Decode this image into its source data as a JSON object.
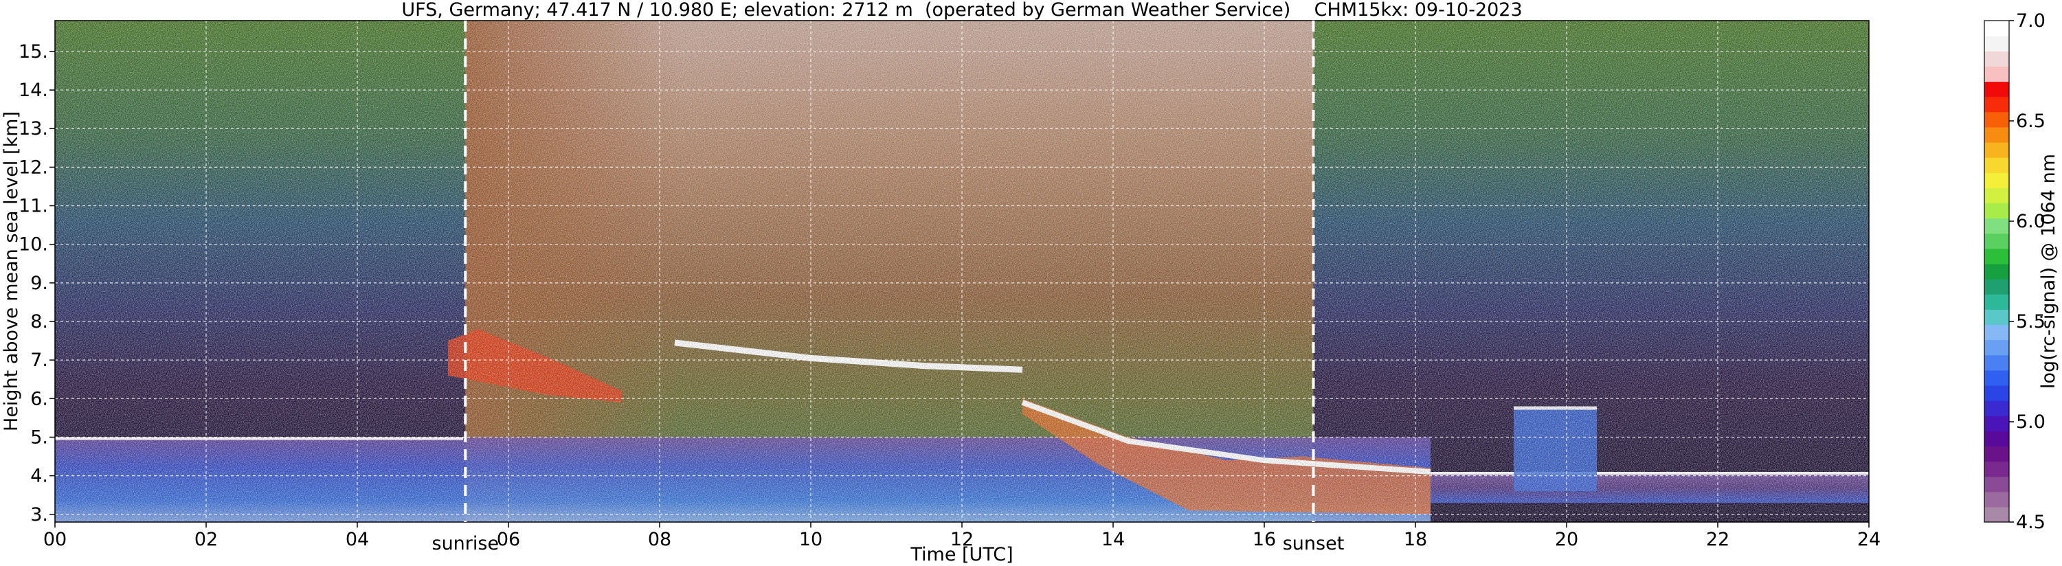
{
  "chart_data": {
    "type": "heatmap",
    "title": "UFS, Germany; 47.417 N / 10.980 E; elevation: 2712 m  (operated by German Weather Service)    CHM15kx: 09-10-2023",
    "xlabel": "Time [UTC]",
    "ylabel": "Height above mean sea level [km]",
    "xlim": [
      0,
      24
    ],
    "ylim": [
      2.8,
      15.8
    ],
    "x_ticks": [
      {
        "value": 0,
        "label": "00"
      },
      {
        "value": 2,
        "label": "02"
      },
      {
        "value": 4,
        "label": "04"
      },
      {
        "value": 6,
        "label": "06"
      },
      {
        "value": 8,
        "label": "08"
      },
      {
        "value": 10,
        "label": "10"
      },
      {
        "value": 12,
        "label": "12"
      },
      {
        "value": 14,
        "label": "14"
      },
      {
        "value": 16,
        "label": "16"
      },
      {
        "value": 18,
        "label": "18"
      },
      {
        "value": 20,
        "label": "20"
      },
      {
        "value": 22,
        "label": "22"
      },
      {
        "value": 24,
        "label": "24"
      }
    ],
    "y_ticks": [
      {
        "value": 3,
        "label": "3."
      },
      {
        "value": 4,
        "label": "4."
      },
      {
        "value": 5,
        "label": "5."
      },
      {
        "value": 6,
        "label": "6."
      },
      {
        "value": 7,
        "label": "7."
      },
      {
        "value": 8,
        "label": "8."
      },
      {
        "value": 9,
        "label": "9."
      },
      {
        "value": 10,
        "label": "10."
      },
      {
        "value": 11,
        "label": "11."
      },
      {
        "value": 12,
        "label": "12."
      },
      {
        "value": 13,
        "label": "13."
      },
      {
        "value": 14,
        "label": "14."
      },
      {
        "value": 15,
        "label": "15."
      }
    ],
    "grid": true,
    "annotations": [
      {
        "text": "sunrise",
        "x": 5.43
      },
      {
        "text": "sunset",
        "x": 16.65
      }
    ],
    "colorbar": {
      "label": "log(rc-signal) @ 1064 nm",
      "range": [
        4.5,
        7.0
      ],
      "ticks": [
        {
          "value": 4.5,
          "label": "4.5"
        },
        {
          "value": 5.0,
          "label": "5.0"
        },
        {
          "value": 5.5,
          "label": "5.5"
        },
        {
          "value": 6.0,
          "label": "6.0"
        },
        {
          "value": 6.5,
          "label": "6.5"
        },
        {
          "value": 7.0,
          "label": "7.0"
        }
      ],
      "colors": [
        "#a88aa8",
        "#9b6a9e",
        "#8a4a96",
        "#7a2a8e",
        "#6a1288",
        "#5a0a9a",
        "#4a14b8",
        "#3a2ad0",
        "#2a44e6",
        "#2f60f0",
        "#4a80f2",
        "#6aa0f4",
        "#86b8f6",
        "#5ac8c8",
        "#2eb89a",
        "#1ea070",
        "#16a040",
        "#2cc03a",
        "#5ad060",
        "#80e080",
        "#a8ec4a",
        "#d2f040",
        "#f4f03a",
        "#f8d82e",
        "#f8b41e",
        "#f88c10",
        "#f86008",
        "#f82c08",
        "#f00a0a",
        "#f8c0c0",
        "#f0d8d8",
        "#f4f4f4",
        "#ffffff"
      ]
    },
    "features": [
      {
        "name": "lower aerosol layer",
        "x": [
          0,
          18.2
        ],
        "y": [
          2.8,
          5.0
        ]
      },
      {
        "name": "cloud layer",
        "x": [
          5.2,
          7.5
        ],
        "y": [
          5.9,
          7.8
        ]
      },
      {
        "name": "cloud base",
        "x": [
          8.2,
          12.8
        ],
        "y": [
          6.6,
          7.5
        ]
      },
      {
        "name": "descending cloud base",
        "x": [
          12.8,
          18.2
        ],
        "y": [
          3.0,
          6.0
        ]
      },
      {
        "name": "residual layer",
        "x": [
          18.2,
          24
        ],
        "y": [
          3.3,
          4.1
        ]
      },
      {
        "name": "convective cells",
        "x": [
          19.3,
          20.4
        ],
        "y": [
          3.6,
          5.8
        ]
      }
    ]
  }
}
